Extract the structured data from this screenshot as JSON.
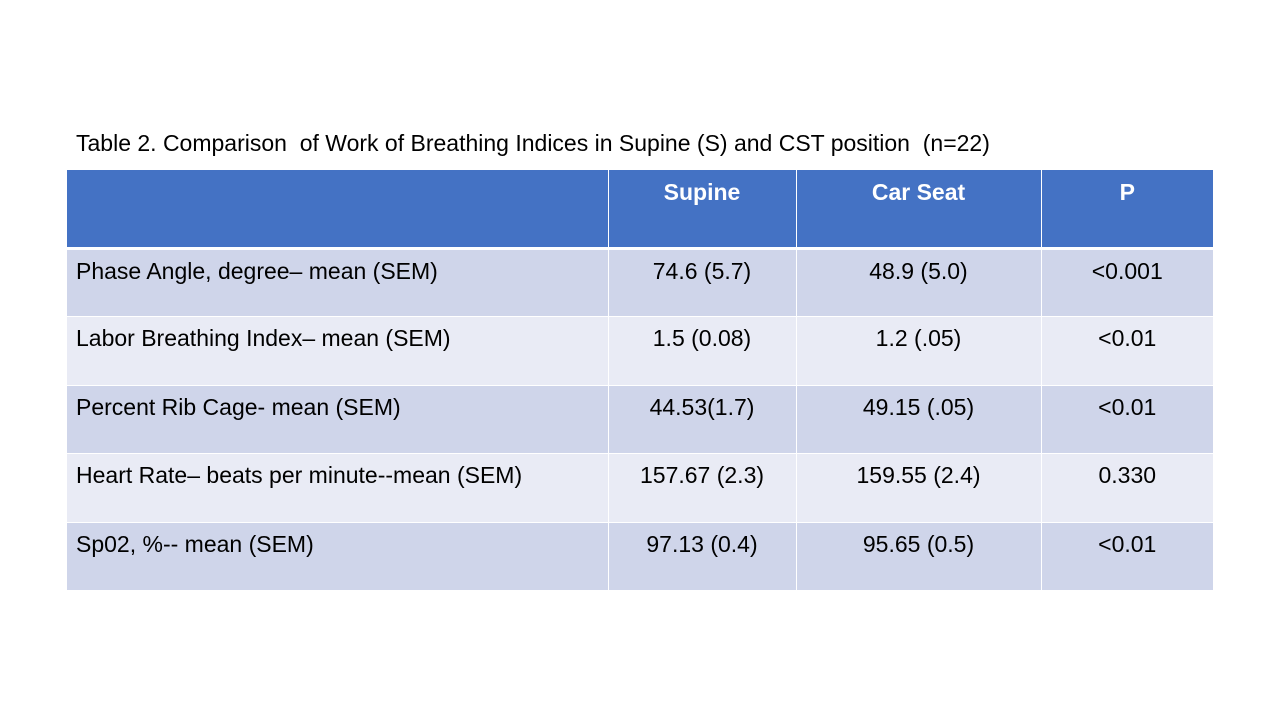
{
  "title": "Table 2. Comparison  of Work of Breathing Indices in Supine (S) and CST position  (n=22)",
  "table": {
    "headers": [
      "",
      "Supine",
      "Car Seat",
      "P"
    ],
    "rows": [
      {
        "label": "Phase Angle, degree– mean (SEM)",
        "supine": "74.6 (5.7)",
        "car_seat": "48.9 (5.0)",
        "p": "<0.001"
      },
      {
        "label": "Labor Breathing Index– mean (SEM)",
        "supine": "1.5 (0.08)",
        "car_seat": "1.2 (.05)",
        "p": "<0.01"
      },
      {
        "label": "Percent Rib Cage- mean (SEM)",
        "supine": "44.53(1.7)",
        "car_seat": "49.15 (.05)",
        "p": "<0.01"
      },
      {
        "label": "Heart Rate– beats per minute--mean (SEM)",
        "supine": "157.67 (2.3)",
        "car_seat": "159.55 (2.4)",
        "p": "0.330"
      },
      {
        "label": "Sp02, %-- mean (SEM)",
        "supine": "97.13 (0.4)",
        "car_seat": "95.65 (0.5)",
        "p": "<0.01"
      }
    ]
  },
  "colors": {
    "header_bg": "#4472c4",
    "row_odd_bg": "#cfd5ea",
    "row_even_bg": "#e9ebf5",
    "header_text": "#ffffff"
  }
}
